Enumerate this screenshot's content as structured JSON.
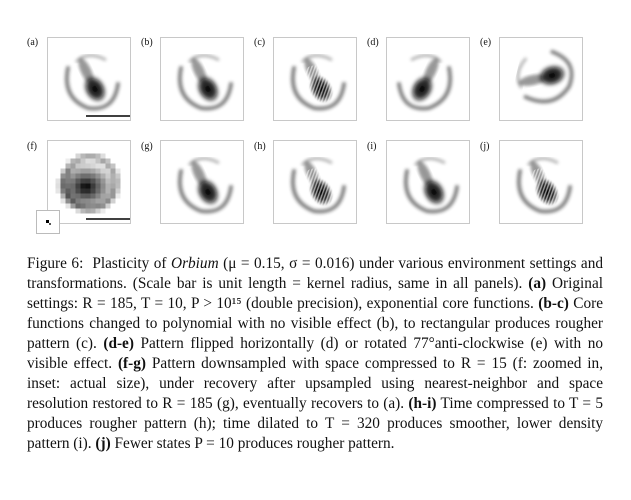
{
  "figure": {
    "panels": [
      {
        "id": "a",
        "label": "(a)",
        "variant": "smooth",
        "scalebar": true
      },
      {
        "id": "b",
        "label": "(b)",
        "variant": "smooth",
        "scalebar": false
      },
      {
        "id": "c",
        "label": "(c)",
        "variant": "rough",
        "scalebar": false
      },
      {
        "id": "d",
        "label": "(d)",
        "variant": "flipped",
        "scalebar": false
      },
      {
        "id": "e",
        "label": "(e)",
        "variant": "rotated",
        "scalebar": false
      },
      {
        "id": "f",
        "label": "(f)",
        "variant": "pixelated",
        "scalebar": true,
        "inset": true
      },
      {
        "id": "g",
        "label": "(g)",
        "variant": "smooth",
        "scalebar": false
      },
      {
        "id": "h",
        "label": "(h)",
        "variant": "rough",
        "scalebar": false
      },
      {
        "id": "i",
        "label": "(i)",
        "variant": "smooth",
        "scalebar": false
      },
      {
        "id": "j",
        "label": "(j)",
        "variant": "rough",
        "scalebar": false
      }
    ],
    "caption": {
      "prefix": "Figure 6:",
      "organism": "Orbium",
      "params": "(μ = 0.15, σ = 0.016)",
      "t1": "Plasticity of",
      "t2": "under various environment settings and transformations. (Scale bar is unit length = kernel radius, same in all panels).",
      "a_label": "(a)",
      "a_text": "Original settings: R = 185, T = 10, P > 10¹⁵ (double precision), exponential core functions.",
      "bc_label": "(b-c)",
      "bc_text": "Core functions changed to polynomial with no visible effect (b), to rectangular produces rougher pattern (c).",
      "de_label": "(d-e)",
      "de_text": "Pattern flipped horizontally (d) or rotated 77°anti-clockwise (e) with no visible effect.",
      "fg_label": "(f-g)",
      "fg_text": "Pattern downsampled with space compressed to R = 15 (f: zoomed in, inset: actual size), under recovery after upsampled using nearest-neighbor and space resolution restored to R = 185 (g), eventually recovers to (a).",
      "hi_label": "(h-i)",
      "hi_text": "Time compressed to T = 5 produces rougher pattern (h); time dilated to T = 320 produces smoother, lower density pattern (i).",
      "j_label": "(j)",
      "j_text": "Fewer states P = 10 produces rougher pattern."
    }
  }
}
